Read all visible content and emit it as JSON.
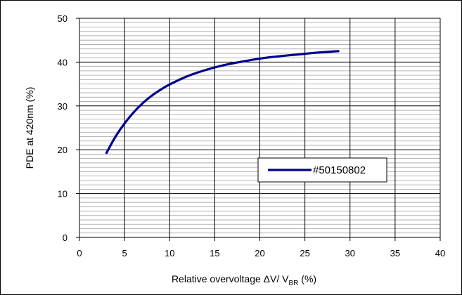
{
  "chart_data": {
    "type": "line",
    "xlabel": "Relative overvoltage  ΔV/ V",
    "xlabel_sub": "BR",
    "xlabel_suffix": " (%)",
    "ylabel": "PDE at 420nm (%)",
    "xlim": [
      0,
      40
    ],
    "ylim": [
      0,
      50
    ],
    "xticks": [
      0,
      5,
      10,
      15,
      20,
      25,
      30,
      35,
      40
    ],
    "yticks": [
      0,
      10,
      20,
      30,
      40,
      50
    ],
    "x_major_step": 5,
    "y_major_step": 10,
    "y_minor_step": 1,
    "grid": true,
    "legend_position": "center-right",
    "series": [
      {
        "name": "#50150802",
        "color": "#00008B",
        "x": [
          3.0,
          4.0,
          5.0,
          6.0,
          7.0,
          8.0,
          9.0,
          10.0,
          12.0,
          14.0,
          16.0,
          18.0,
          20.0,
          22.0,
          24.0,
          26.0,
          28.0,
          28.7
        ],
        "y": [
          19.3,
          23.0,
          26.0,
          28.5,
          30.6,
          32.3,
          33.7,
          34.9,
          36.8,
          38.2,
          39.3,
          40.1,
          40.8,
          41.3,
          41.7,
          42.1,
          42.4,
          42.5
        ]
      }
    ]
  }
}
